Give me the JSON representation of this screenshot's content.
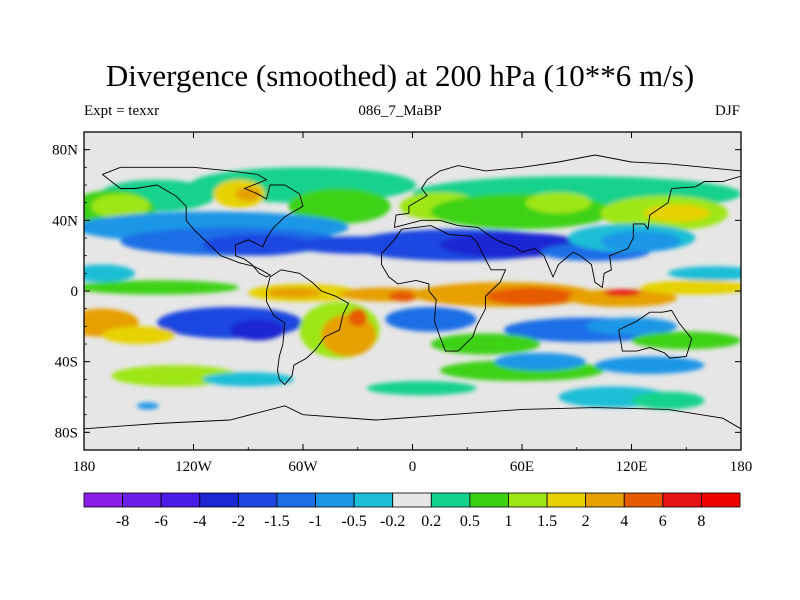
{
  "chart_data": {
    "type": "heatmap",
    "title": "Divergence (smoothed) at 200 hPa (10**6 m/s)",
    "left_label": "Expt = texxr",
    "center_label": "086_7_MaBP",
    "right_label": "DJF",
    "x_range": [
      -180,
      180
    ],
    "y_range": [
      -90,
      90
    ],
    "x_ticks": [
      {
        "value": -180,
        "label": "180"
      },
      {
        "value": -120,
        "label": "120W"
      },
      {
        "value": -60,
        "label": "60W"
      },
      {
        "value": 0,
        "label": "0"
      },
      {
        "value": 60,
        "label": "60E"
      },
      {
        "value": 120,
        "label": "120E"
      },
      {
        "value": 180,
        "label": "180"
      }
    ],
    "y_ticks": [
      {
        "value": 80,
        "label": "80N"
      },
      {
        "value": 40,
        "label": "40N"
      },
      {
        "value": 0,
        "label": "0"
      },
      {
        "value": -40,
        "label": "40S"
      },
      {
        "value": -80,
        "label": "80S"
      }
    ],
    "colorbar": {
      "levels": [
        "-8",
        "-6",
        "-4",
        "-2",
        "-1.5",
        "-1",
        "-0.5",
        "-0.2",
        "0.2",
        "0.5",
        "1",
        "1.5",
        "2",
        "4",
        "6",
        "8"
      ],
      "colors": [
        "#8a1ee6",
        "#6a1ee6",
        "#4a1ee6",
        "#1e28d2",
        "#1e46e0",
        "#1e6ee6",
        "#1e96e6",
        "#1ebed6",
        "#e6e6e6",
        "#14d28c",
        "#3cd214",
        "#9ee614",
        "#e6d200",
        "#e6a000",
        "#e65a00",
        "#e61414",
        "#f00000"
      ]
    },
    "blobs": [
      {
        "lon": -60,
        "lat": 60,
        "rx": 62,
        "ry": 10,
        "level": 9
      },
      {
        "lon": -140,
        "lat": 54,
        "rx": 32,
        "ry": 9,
        "level": 9
      },
      {
        "lon": 90,
        "lat": 55,
        "rx": 90,
        "ry": 10,
        "level": 9
      },
      {
        "lon": -165,
        "lat": 45,
        "rx": 24,
        "ry": 12,
        "level": 10
      },
      {
        "lon": -160,
        "lat": 48,
        "rx": 16,
        "ry": 7,
        "level": 11
      },
      {
        "lon": -95,
        "lat": 55,
        "rx": 14,
        "ry": 8,
        "level": 12
      },
      {
        "lon": -90,
        "lat": 55,
        "rx": 7,
        "ry": 4,
        "level": 13
      },
      {
        "lon": -40,
        "lat": 48,
        "rx": 28,
        "ry": 10,
        "level": 10
      },
      {
        "lon": 15,
        "lat": 48,
        "rx": 22,
        "ry": 8,
        "level": 11
      },
      {
        "lon": 60,
        "lat": 45,
        "rx": 50,
        "ry": 10,
        "level": 10
      },
      {
        "lon": 80,
        "lat": 50,
        "rx": 18,
        "ry": 6,
        "level": 11
      },
      {
        "lon": 138,
        "lat": 44,
        "rx": 35,
        "ry": 10,
        "level": 11
      },
      {
        "lon": 145,
        "lat": 44,
        "rx": 18,
        "ry": 5,
        "level": 12
      },
      {
        "lon": -110,
        "lat": 36,
        "rx": 75,
        "ry": 9,
        "level": 6
      },
      {
        "lon": -100,
        "lat": 28,
        "rx": 60,
        "ry": 8,
        "level": 5
      },
      {
        "lon": -85,
        "lat": 26,
        "rx": 30,
        "ry": 6,
        "level": 4
      },
      {
        "lon": -30,
        "lat": 26,
        "rx": 35,
        "ry": 5,
        "level": 4
      },
      {
        "lon": 25,
        "lat": 26,
        "rx": 60,
        "ry": 9,
        "level": 4
      },
      {
        "lon": 55,
        "lat": 26,
        "rx": 40,
        "ry": 7,
        "level": 3
      },
      {
        "lon": 100,
        "lat": 22,
        "rx": 30,
        "ry": 5,
        "level": 5
      },
      {
        "lon": 120,
        "lat": 30,
        "rx": 35,
        "ry": 8,
        "level": 7
      },
      {
        "lon": 125,
        "lat": 28,
        "rx": 22,
        "ry": 6,
        "level": 6
      },
      {
        "lon": -170,
        "lat": 10,
        "rx": 18,
        "ry": 5,
        "level": 7
      },
      {
        "lon": 165,
        "lat": 10,
        "rx": 25,
        "ry": 4,
        "level": 7
      },
      {
        "lon": -140,
        "lat": 2,
        "rx": 45,
        "ry": 4,
        "level": 10
      },
      {
        "lon": -60,
        "lat": -1,
        "rx": 30,
        "ry": 5,
        "level": 12
      },
      {
        "lon": -65,
        "lat": -1,
        "rx": 15,
        "ry": 3,
        "level": 13
      },
      {
        "lon": -15,
        "lat": -2,
        "rx": 25,
        "ry": 4,
        "level": 13
      },
      {
        "lon": -5,
        "lat": -3,
        "rx": 8,
        "ry": 3,
        "level": 14
      },
      {
        "lon": 50,
        "lat": -2,
        "rx": 50,
        "ry": 7,
        "level": 13
      },
      {
        "lon": 65,
        "lat": -3,
        "rx": 25,
        "ry": 5,
        "level": 14
      },
      {
        "lon": 115,
        "lat": -4,
        "rx": 30,
        "ry": 5,
        "level": 13
      },
      {
        "lon": 115,
        "lat": -1,
        "rx": 10,
        "ry": 2,
        "level": 15
      },
      {
        "lon": 155,
        "lat": 2,
        "rx": 30,
        "ry": 4,
        "level": 12
      },
      {
        "lon": -100,
        "lat": -18,
        "rx": 40,
        "ry": 9,
        "level": 4
      },
      {
        "lon": -85,
        "lat": -22,
        "rx": 15,
        "ry": 6,
        "level": 3
      },
      {
        "lon": 10,
        "lat": -16,
        "rx": 25,
        "ry": 7,
        "level": 5
      },
      {
        "lon": 95,
        "lat": -22,
        "rx": 45,
        "ry": 7,
        "level": 5
      },
      {
        "lon": 120,
        "lat": -20,
        "rx": 25,
        "ry": 5,
        "level": 6
      },
      {
        "lon": -170,
        "lat": -18,
        "rx": 20,
        "ry": 8,
        "level": 13
      },
      {
        "lon": -150,
        "lat": -25,
        "rx": 20,
        "ry": 5,
        "level": 12
      },
      {
        "lon": -40,
        "lat": -22,
        "rx": 22,
        "ry": 16,
        "level": 11
      },
      {
        "lon": -35,
        "lat": -25,
        "rx": 15,
        "ry": 12,
        "level": 13
      },
      {
        "lon": -30,
        "lat": -15,
        "rx": 5,
        "ry": 5,
        "level": 14
      },
      {
        "lon": 40,
        "lat": -30,
        "rx": 30,
        "ry": 6,
        "level": 10
      },
      {
        "lon": 60,
        "lat": -45,
        "rx": 45,
        "ry": 6,
        "level": 10
      },
      {
        "lon": 150,
        "lat": -28,
        "rx": 30,
        "ry": 5,
        "level": 10
      },
      {
        "lon": -130,
        "lat": -48,
        "rx": 35,
        "ry": 6,
        "level": 11
      },
      {
        "lon": 70,
        "lat": -40,
        "rx": 25,
        "ry": 5,
        "level": 6
      },
      {
        "lon": 130,
        "lat": -42,
        "rx": 30,
        "ry": 5,
        "level": 6
      },
      {
        "lon": 110,
        "lat": -60,
        "rx": 30,
        "ry": 6,
        "level": 7
      },
      {
        "lon": 140,
        "lat": -62,
        "rx": 20,
        "ry": 5,
        "level": 9
      },
      {
        "lon": -145,
        "lat": -65,
        "rx": 6,
        "ry": 2,
        "level": 6
      },
      {
        "lon": 5,
        "lat": -55,
        "rx": 30,
        "ry": 4,
        "level": 9
      },
      {
        "lon": -90,
        "lat": -50,
        "rx": 25,
        "ry": 4,
        "level": 7
      }
    ],
    "coastline_paths": [
      [
        [
          -170,
          66
        ],
        [
          -160,
          70
        ],
        [
          -140,
          70
        ],
        [
          -120,
          70
        ],
        [
          -100,
          68
        ],
        [
          -85,
          66
        ],
        [
          -80,
          63
        ],
        [
          -92,
          58
        ],
        [
          -85,
          55
        ],
        [
          -80,
          52
        ],
        [
          -78,
          60
        ],
        [
          -70,
          60
        ],
        [
          -62,
          55
        ],
        [
          -60,
          48
        ],
        [
          -70,
          42
        ],
        [
          -76,
          36
        ],
        [
          -80,
          30
        ],
        [
          -82,
          25
        ],
        [
          -90,
          29
        ],
        [
          -97,
          26
        ],
        [
          -97,
          20
        ],
        [
          -92,
          18
        ],
        [
          -88,
          15
        ],
        [
          -84,
          10
        ],
        [
          -80,
          8
        ],
        [
          -78,
          9
        ],
        [
          -83,
          12
        ],
        [
          -87,
          14
        ],
        [
          -95,
          16
        ],
        [
          -105,
          20
        ],
        [
          -110,
          25
        ],
        [
          -115,
          30
        ],
        [
          -120,
          35
        ],
        [
          -124,
          40
        ],
        [
          -124,
          48
        ],
        [
          -130,
          54
        ],
        [
          -140,
          60
        ],
        [
          -152,
          58
        ],
        [
          -160,
          58
        ],
        [
          -165,
          62
        ],
        [
          -170,
          66
        ]
      ],
      [
        [
          -78,
          8
        ],
        [
          -72,
          12
        ],
        [
          -62,
          10
        ],
        [
          -55,
          5
        ],
        [
          -50,
          0
        ],
        [
          -42,
          -3
        ],
        [
          -35,
          -7
        ],
        [
          -38,
          -13
        ],
        [
          -40,
          -22
        ],
        [
          -48,
          -26
        ],
        [
          -53,
          -33
        ],
        [
          -58,
          -38
        ],
        [
          -65,
          -42
        ],
        [
          -66,
          -48
        ],
        [
          -70,
          -53
        ],
        [
          -73,
          -50
        ],
        [
          -74,
          -45
        ],
        [
          -73,
          -37
        ],
        [
          -71,
          -30
        ],
        [
          -70,
          -18
        ],
        [
          -76,
          -14
        ],
        [
          -80,
          -6
        ],
        [
          -80,
          0
        ],
        [
          -78,
          8
        ]
      ],
      [
        [
          -17,
          15
        ],
        [
          -17,
          21
        ],
        [
          -10,
          29
        ],
        [
          -6,
          35
        ],
        [
          10,
          37
        ],
        [
          20,
          32
        ],
        [
          32,
          31
        ],
        [
          35,
          28
        ],
        [
          43,
          12
        ],
        [
          51,
          12
        ],
        [
          48,
          5
        ],
        [
          40,
          -3
        ],
        [
          40,
          -10
        ],
        [
          35,
          -20
        ],
        [
          33,
          -26
        ],
        [
          25,
          -34
        ],
        [
          18,
          -34
        ],
        [
          15,
          -26
        ],
        [
          12,
          -17
        ],
        [
          13,
          -5
        ],
        [
          9,
          0
        ],
        [
          9,
          4
        ],
        [
          2,
          6
        ],
        [
          -8,
          4
        ],
        [
          -13,
          8
        ],
        [
          -17,
          15
        ]
      ],
      [
        [
          -10,
          36
        ],
        [
          -9,
          43
        ],
        [
          -2,
          44
        ],
        [
          -2,
          48
        ],
        [
          3,
          51
        ],
        [
          8,
          54
        ],
        [
          5,
          58
        ],
        [
          8,
          63
        ],
        [
          15,
          68
        ],
        [
          25,
          71
        ],
        [
          40,
          68
        ],
        [
          60,
          70
        ],
        [
          80,
          73
        ],
        [
          100,
          77
        ],
        [
          120,
          73
        ],
        [
          140,
          72
        ],
        [
          160,
          70
        ],
        [
          180,
          68
        ]
      ],
      [
        [
          -10,
          36
        ],
        [
          5,
          40
        ],
        [
          15,
          40
        ],
        [
          25,
          37
        ],
        [
          36,
          36
        ],
        [
          44,
          30
        ],
        [
          50,
          27
        ],
        [
          56,
          25
        ],
        [
          60,
          22
        ],
        [
          67,
          24
        ],
        [
          72,
          20
        ],
        [
          77,
          8
        ],
        [
          80,
          15
        ],
        [
          88,
          22
        ],
        [
          92,
          20
        ],
        [
          98,
          15
        ],
        [
          100,
          5
        ],
        [
          104,
          2
        ],
        [
          105,
          10
        ],
        [
          109,
          12
        ],
        [
          108,
          20
        ],
        [
          118,
          24
        ],
        [
          121,
          30
        ],
        [
          121,
          38
        ],
        [
          127,
          38
        ],
        [
          129,
          35
        ],
        [
          130,
          43
        ],
        [
          140,
          50
        ],
        [
          142,
          58
        ],
        [
          155,
          59
        ],
        [
          160,
          62
        ],
        [
          170,
          62
        ],
        [
          180,
          65
        ]
      ],
      [
        [
          113,
          -22
        ],
        [
          115,
          -34
        ],
        [
          123,
          -34
        ],
        [
          130,
          -32
        ],
        [
          138,
          -35
        ],
        [
          141,
          -38
        ],
        [
          150,
          -37
        ],
        [
          153,
          -27
        ],
        [
          146,
          -18
        ],
        [
          142,
          -11
        ],
        [
          137,
          -12
        ],
        [
          130,
          -12
        ],
        [
          123,
          -17
        ],
        [
          113,
          -22
        ]
      ],
      [
        [
          -180,
          -78
        ],
        [
          -140,
          -75
        ],
        [
          -100,
          -73
        ],
        [
          -70,
          -65
        ],
        [
          -60,
          -70
        ],
        [
          -20,
          -73
        ],
        [
          20,
          -70
        ],
        [
          60,
          -67
        ],
        [
          100,
          -66
        ],
        [
          140,
          -67
        ],
        [
          170,
          -72
        ],
        [
          180,
          -78
        ]
      ]
    ]
  }
}
